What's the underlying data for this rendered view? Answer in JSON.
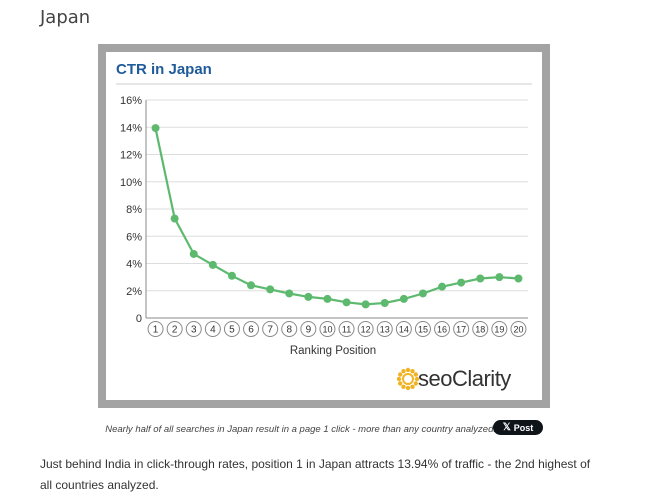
{
  "section": {
    "title": "Japan"
  },
  "chart_data": {
    "type": "line",
    "title": "CTR in Japan",
    "xlabel": "Ranking Position",
    "ylabel": "",
    "categories": [
      "1",
      "2",
      "3",
      "4",
      "5",
      "6",
      "7",
      "8",
      "9",
      "10",
      "11",
      "12",
      "13",
      "14",
      "15",
      "16",
      "17",
      "18",
      "19",
      "20"
    ],
    "values": [
      13.94,
      7.3,
      4.7,
      3.9,
      3.1,
      2.4,
      2.1,
      1.8,
      1.55,
      1.4,
      1.15,
      1.0,
      1.1,
      1.4,
      1.8,
      2.3,
      2.6,
      2.9,
      3.0,
      2.9
    ],
    "ylim": [
      0,
      16
    ],
    "yticks": [
      "0",
      "2%",
      "4%",
      "6%",
      "8%",
      "10%",
      "12%",
      "14%",
      "16%"
    ],
    "grid": true,
    "color": "#5db96e",
    "title_color": "#1f5b9b",
    "logo_text": "seoClarity"
  },
  "caption": "Nearly half of all searches in Japan result in a page 1 click - more than any country analyzed.",
  "share_button": {
    "icon": "x-logo-icon",
    "label": "Post",
    "glyph": "𝕏"
  },
  "body_text": "Just behind India in click-through rates, position 1 in Japan attracts 13.94% of traffic - the 2nd highest of all countries analyzed."
}
